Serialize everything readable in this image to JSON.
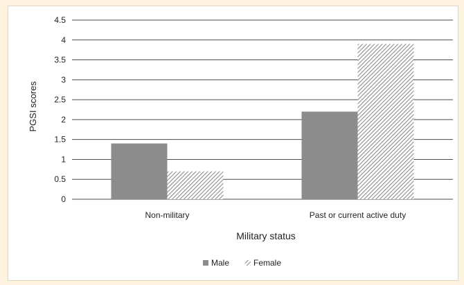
{
  "chart_data": {
    "type": "bar",
    "categories": [
      "Non-military",
      "Past or current active duty"
    ],
    "series": [
      {
        "name": "Male",
        "values": [
          1.4,
          2.2
        ],
        "color": "#8c8c8c",
        "pattern": "solid"
      },
      {
        "name": "Female",
        "values": [
          0.7,
          3.9
        ],
        "color": "#8c8c8c",
        "pattern": "diagonal-hatch"
      }
    ],
    "title": "",
    "xlabel": "Military status",
    "ylabel": "PGSI scores",
    "ylim": [
      0,
      4.5
    ],
    "yticks": [
      "0",
      "0.5",
      "1",
      "1.5",
      "2",
      "2.5",
      "3",
      "3.5",
      "4",
      "4.5"
    ],
    "grid": true,
    "legend_position": "bottom-center"
  },
  "colors": {
    "page_background": "#fdf3df",
    "panel_background": "#ffffff",
    "gridline": "#4a4a4a"
  }
}
